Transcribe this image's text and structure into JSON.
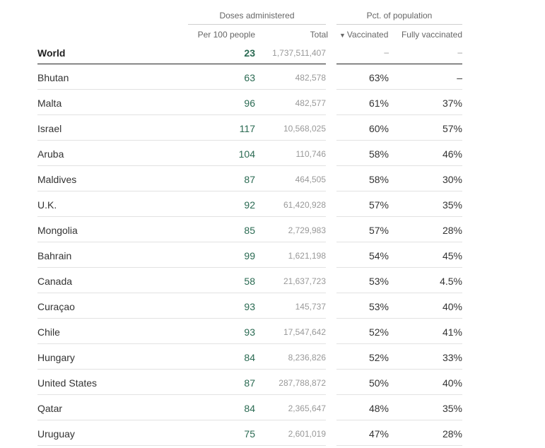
{
  "headers": {
    "doses_group": "Doses administered",
    "pct_group": "Pct. of population",
    "per100": "Per 100 people",
    "total": "Total",
    "vaccinated": "Vaccinated",
    "fully": "Fully vaccinated",
    "sort_indicator": "▼"
  },
  "world": {
    "name": "World",
    "per100": "23",
    "total": "1,737,511,407",
    "vaccinated": "–",
    "fully": "–"
  },
  "rows": [
    {
      "name": "Bhutan",
      "per100": "63",
      "total": "482,578",
      "vaccinated": "63%",
      "fully": "–"
    },
    {
      "name": "Malta",
      "per100": "96",
      "total": "482,577",
      "vaccinated": "61%",
      "fully": "37%"
    },
    {
      "name": "Israel",
      "per100": "117",
      "total": "10,568,025",
      "vaccinated": "60%",
      "fully": "57%"
    },
    {
      "name": "Aruba",
      "per100": "104",
      "total": "110,746",
      "vaccinated": "58%",
      "fully": "46%"
    },
    {
      "name": "Maldives",
      "per100": "87",
      "total": "464,505",
      "vaccinated": "58%",
      "fully": "30%"
    },
    {
      "name": "U.K.",
      "per100": "92",
      "total": "61,420,928",
      "vaccinated": "57%",
      "fully": "35%"
    },
    {
      "name": "Mongolia",
      "per100": "85",
      "total": "2,729,983",
      "vaccinated": "57%",
      "fully": "28%"
    },
    {
      "name": "Bahrain",
      "per100": "99",
      "total": "1,621,198",
      "vaccinated": "54%",
      "fully": "45%"
    },
    {
      "name": "Canada",
      "per100": "58",
      "total": "21,637,723",
      "vaccinated": "53%",
      "fully": "4.5%"
    },
    {
      "name": "Curaçao",
      "per100": "93",
      "total": "145,737",
      "vaccinated": "53%",
      "fully": "40%"
    },
    {
      "name": "Chile",
      "per100": "93",
      "total": "17,547,642",
      "vaccinated": "52%",
      "fully": "41%"
    },
    {
      "name": "Hungary",
      "per100": "84",
      "total": "8,236,826",
      "vaccinated": "52%",
      "fully": "33%"
    },
    {
      "name": "United States",
      "per100": "87",
      "total": "287,788,872",
      "vaccinated": "50%",
      "fully": "40%"
    },
    {
      "name": "Qatar",
      "per100": "84",
      "total": "2,365,647",
      "vaccinated": "48%",
      "fully": "35%"
    },
    {
      "name": "Uruguay",
      "per100": "75",
      "total": "2,601,019",
      "vaccinated": "47%",
      "fully": "28%"
    }
  ],
  "colors": {
    "per100": "#2a6a52",
    "total": "#999999",
    "header": "#666666"
  }
}
